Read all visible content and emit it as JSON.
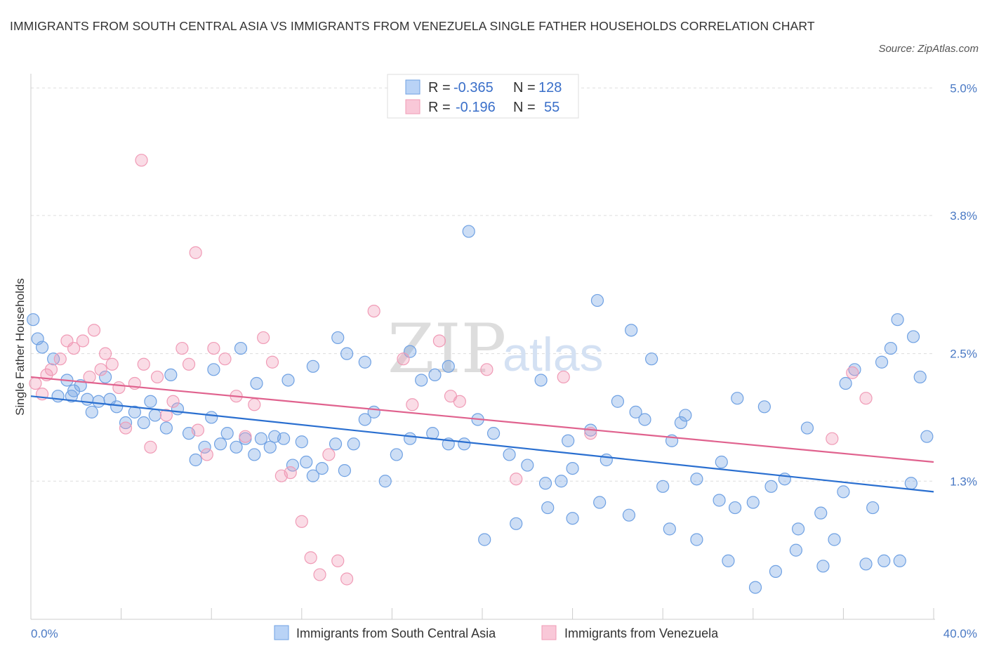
{
  "title": "IMMIGRANTS FROM SOUTH CENTRAL ASIA VS IMMIGRANTS FROM VENEZUELA SINGLE FATHER HOUSEHOLDS CORRELATION CHART",
  "source": "Source: ZipAtlas.com",
  "watermark": {
    "zip": "ZIP",
    "atlas": "atlas"
  },
  "legend": {
    "rows": [
      {
        "r_label": "R =",
        "r_value": "-0.365",
        "n_label": "N =",
        "n_value": "128"
      },
      {
        "r_label": "R =",
        "r_value": "-0.196",
        "n_label": "N =",
        "n_value": "55"
      }
    ]
  },
  "chart_data": {
    "type": "scatter",
    "title": "IMMIGRANTS FROM SOUTH CENTRAL ASIA VS IMMIGRANTS FROM VENEZUELA SINGLE FATHER HOUSEHOLDS CORRELATION CHART",
    "xlabel": "",
    "ylabel": "Single Father Households",
    "xlim": [
      0,
      40
    ],
    "ylim": [
      0,
      5.2
    ],
    "x_tick_labels": [
      "0.0%",
      "40.0%"
    ],
    "y_ticks": [
      1.3,
      2.5,
      3.8,
      5.0
    ],
    "y_tick_labels": [
      "1.3%",
      "2.5%",
      "3.8%",
      "5.0%"
    ],
    "grid": true,
    "legend_position": "top-center",
    "colors": {
      "south_central_asia": "#6fa1e3",
      "south_central_asia_line": "#2a6fd0",
      "venezuela": "#f09bb6",
      "venezuela_line": "#e0628e"
    },
    "series": [
      {
        "name": "Immigrants from South Central Asia",
        "R": -0.365,
        "N": 128,
        "trend": {
          "x": [
            0,
            40
          ],
          "y": [
            2.1,
            1.2
          ]
        },
        "points": [
          [
            0.1,
            2.82
          ],
          [
            0.3,
            2.64
          ],
          [
            0.5,
            2.56
          ],
          [
            1.0,
            2.45
          ],
          [
            1.2,
            2.1
          ],
          [
            1.6,
            2.25
          ],
          [
            1.8,
            2.1
          ],
          [
            2.2,
            2.2
          ],
          [
            1.9,
            2.15
          ],
          [
            2.5,
            2.07
          ],
          [
            2.7,
            1.95
          ],
          [
            3.0,
            2.05
          ],
          [
            3.5,
            2.07
          ],
          [
            3.8,
            2.0
          ],
          [
            4.2,
            1.85
          ],
          [
            4.6,
            1.95
          ],
          [
            5.0,
            1.85
          ],
          [
            5.3,
            2.05
          ],
          [
            5.5,
            1.92
          ],
          [
            6.0,
            1.8
          ],
          [
            6.5,
            1.98
          ],
          [
            7.0,
            1.75
          ],
          [
            7.3,
            1.5
          ],
          [
            7.7,
            1.62
          ],
          [
            8.0,
            1.9
          ],
          [
            8.4,
            1.65
          ],
          [
            8.7,
            1.75
          ],
          [
            9.1,
            1.62
          ],
          [
            9.5,
            1.7
          ],
          [
            9.9,
            1.55
          ],
          [
            10.2,
            1.7
          ],
          [
            10.6,
            1.62
          ],
          [
            10.8,
            1.72
          ],
          [
            11.2,
            1.7
          ],
          [
            11.6,
            1.45
          ],
          [
            12.0,
            1.67
          ],
          [
            12.2,
            1.48
          ],
          [
            12.5,
            1.35
          ],
          [
            12.9,
            1.42
          ],
          [
            13.5,
            1.65
          ],
          [
            13.9,
            1.4
          ],
          [
            14.3,
            1.65
          ],
          [
            14.8,
            1.88
          ],
          [
            15.2,
            1.95
          ],
          [
            15.7,
            1.3
          ],
          [
            16.2,
            1.55
          ],
          [
            16.8,
            1.7
          ],
          [
            17.3,
            2.25
          ],
          [
            17.8,
            1.75
          ],
          [
            18.5,
            1.65
          ],
          [
            19.2,
            1.65
          ],
          [
            19.8,
            1.88
          ],
          [
            20.5,
            1.75
          ],
          [
            21.2,
            1.55
          ],
          [
            22.0,
            1.45
          ],
          [
            22.8,
            1.28
          ],
          [
            23.5,
            1.3
          ],
          [
            24.0,
            1.42
          ],
          [
            24.8,
            1.78
          ],
          [
            25.5,
            1.5
          ],
          [
            26.0,
            2.05
          ],
          [
            26.8,
            1.95
          ],
          [
            27.5,
            2.45
          ],
          [
            28.0,
            1.25
          ],
          [
            28.8,
            1.85
          ],
          [
            29.5,
            1.32
          ],
          [
            30.5,
            1.12
          ],
          [
            31.2,
            1.05
          ],
          [
            32.0,
            1.1
          ],
          [
            32.8,
            1.25
          ],
          [
            33.4,
            1.32
          ],
          [
            34.0,
            0.85
          ],
          [
            35.0,
            1.0
          ],
          [
            36.0,
            1.2
          ],
          [
            37.0,
            0.52
          ],
          [
            37.8,
            0.55
          ],
          [
            38.5,
            0.55
          ],
          [
            39.0,
            1.28
          ],
          [
            3.3,
            2.28
          ],
          [
            6.2,
            2.3
          ],
          [
            8.1,
            2.35
          ],
          [
            9.3,
            2.55
          ],
          [
            10.0,
            2.22
          ],
          [
            11.4,
            2.25
          ],
          [
            12.5,
            2.38
          ],
          [
            13.6,
            2.65
          ],
          [
            14.0,
            2.5
          ],
          [
            14.8,
            2.42
          ],
          [
            16.8,
            2.52
          ],
          [
            17.9,
            2.3
          ],
          [
            18.5,
            2.38
          ],
          [
            19.4,
            3.65
          ],
          [
            22.6,
            2.25
          ],
          [
            23.8,
            1.68
          ],
          [
            25.1,
            3.0
          ],
          [
            26.6,
            2.72
          ],
          [
            27.2,
            1.88
          ],
          [
            28.4,
            1.68
          ],
          [
            29.0,
            1.92
          ],
          [
            30.6,
            1.48
          ],
          [
            31.3,
            2.08
          ],
          [
            32.5,
            2.0
          ],
          [
            34.4,
            1.8
          ],
          [
            36.1,
            2.22
          ],
          [
            36.5,
            2.35
          ],
          [
            37.7,
            2.42
          ],
          [
            38.1,
            2.55
          ],
          [
            38.4,
            2.82
          ],
          [
            39.1,
            2.66
          ],
          [
            39.4,
            2.28
          ],
          [
            39.7,
            1.72
          ],
          [
            37.3,
            1.05
          ],
          [
            35.6,
            0.75
          ],
          [
            35.1,
            0.5
          ],
          [
            33.9,
            0.65
          ],
          [
            33.0,
            0.45
          ],
          [
            32.1,
            0.3
          ],
          [
            30.9,
            0.55
          ],
          [
            29.5,
            0.75
          ],
          [
            28.3,
            0.85
          ],
          [
            26.5,
            0.98
          ],
          [
            25.2,
            1.1
          ],
          [
            24.0,
            0.95
          ],
          [
            22.9,
            1.05
          ],
          [
            21.5,
            0.9
          ],
          [
            20.1,
            0.75
          ]
        ]
      },
      {
        "name": "Immigrants from Venezuela",
        "R": -0.196,
        "N": 55,
        "trend": {
          "x": [
            0,
            40
          ],
          "y": [
            2.28,
            1.48
          ]
        },
        "points": [
          [
            0.2,
            2.22
          ],
          [
            0.5,
            2.12
          ],
          [
            0.7,
            2.3
          ],
          [
            0.9,
            2.35
          ],
          [
            1.3,
            2.45
          ],
          [
            1.6,
            2.62
          ],
          [
            1.9,
            2.55
          ],
          [
            2.3,
            2.62
          ],
          [
            2.6,
            2.28
          ],
          [
            2.8,
            2.72
          ],
          [
            3.1,
            2.35
          ],
          [
            3.3,
            2.5
          ],
          [
            3.6,
            2.4
          ],
          [
            3.9,
            2.18
          ],
          [
            4.2,
            1.8
          ],
          [
            4.6,
            2.22
          ],
          [
            5.0,
            2.4
          ],
          [
            5.3,
            1.62
          ],
          [
            5.6,
            2.28
          ],
          [
            6.0,
            1.92
          ],
          [
            6.3,
            2.05
          ],
          [
            6.7,
            2.55
          ],
          [
            7.0,
            2.4
          ],
          [
            7.4,
            1.78
          ],
          [
            7.8,
            1.55
          ],
          [
            8.1,
            2.55
          ],
          [
            8.6,
            2.45
          ],
          [
            9.1,
            2.1
          ],
          [
            9.5,
            1.72
          ],
          [
            9.9,
            2.02
          ],
          [
            10.3,
            2.65
          ],
          [
            10.7,
            2.42
          ],
          [
            11.1,
            1.35
          ],
          [
            11.5,
            1.38
          ],
          [
            12.0,
            0.92
          ],
          [
            12.4,
            0.58
          ],
          [
            12.8,
            0.42
          ],
          [
            13.2,
            1.55
          ],
          [
            13.6,
            0.55
          ],
          [
            14.0,
            0.38
          ],
          [
            4.9,
            4.32
          ],
          [
            7.3,
            3.45
          ],
          [
            15.2,
            2.9
          ],
          [
            16.5,
            2.45
          ],
          [
            16.9,
            2.02
          ],
          [
            18.1,
            2.62
          ],
          [
            18.6,
            2.1
          ],
          [
            19.0,
            2.05
          ],
          [
            20.2,
            2.35
          ],
          [
            21.5,
            1.32
          ],
          [
            23.6,
            2.28
          ],
          [
            24.8,
            1.75
          ],
          [
            35.5,
            1.7
          ],
          [
            36.4,
            2.32
          ],
          [
            37.0,
            2.08
          ]
        ]
      }
    ]
  },
  "bottom_legend": {
    "items": [
      {
        "label": "Immigrants from South Central Asia"
      },
      {
        "label": "Immigrants from Venezuela"
      }
    ]
  }
}
